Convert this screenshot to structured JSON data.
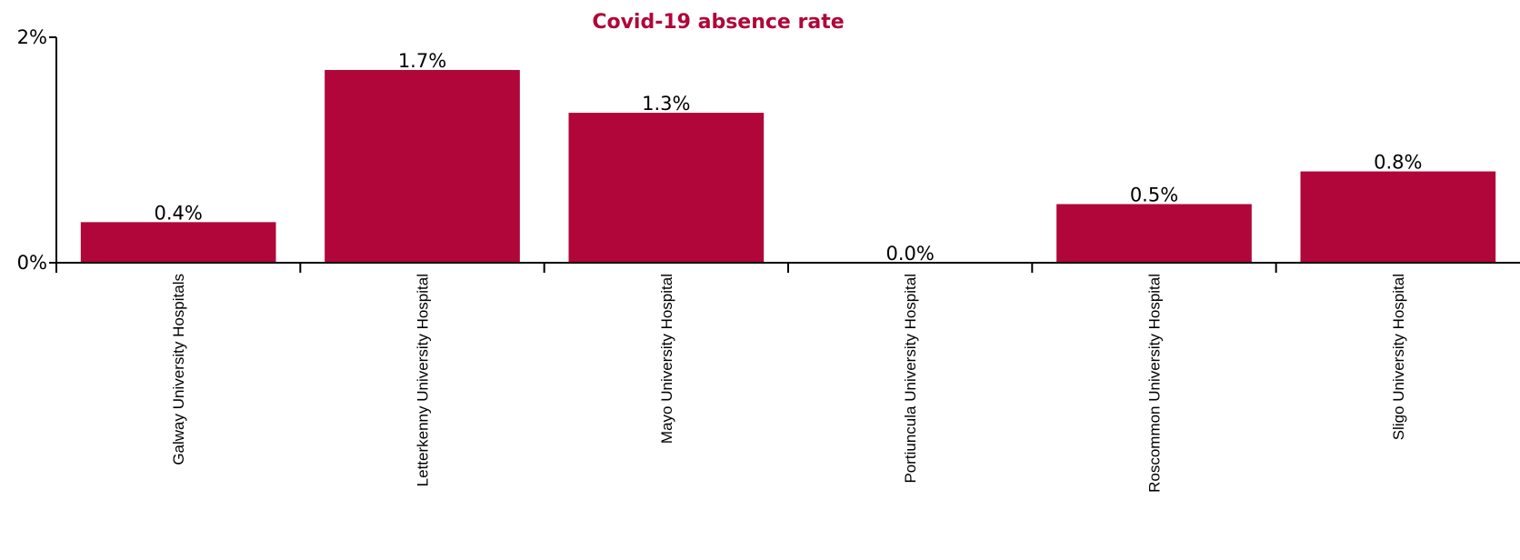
{
  "chart_data": {
    "type": "bar",
    "title": "Covid-19 absence rate",
    "xlabel": "",
    "ylabel": "",
    "categories": [
      "Galway University Hospitals",
      "Letterkenny University Hospital",
      "Mayo University Hospital",
      "Portiuncula University Hospital",
      "Roscommon University Hospital",
      "Sligo University Hospital"
    ],
    "values": [
      0.36,
      1.71,
      1.33,
      0.0,
      0.52,
      0.81
    ],
    "data_labels": [
      "0.4%",
      "1.7%",
      "1.3%",
      "0.0%",
      "0.5%",
      "0.8%"
    ],
    "ylim": [
      0,
      2
    ],
    "yticks": [
      {
        "value": 0,
        "label": "0%"
      },
      {
        "value": 2,
        "label": "2%"
      }
    ],
    "grid": false,
    "legend": "none",
    "colors": {
      "bar": "#b0063a",
      "title": "#b0063a",
      "axis": "#000000"
    }
  }
}
